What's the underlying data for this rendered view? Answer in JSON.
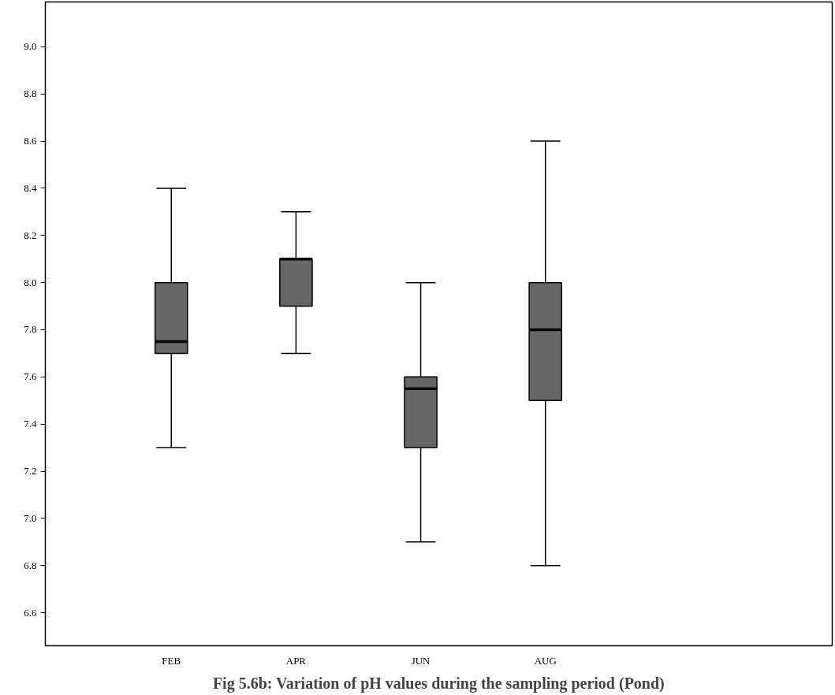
{
  "chart_data": {
    "type": "box",
    "title": "Fig 5.6b: Variation of pH values during the sampling period (Pond)",
    "categories": [
      "FEB",
      "APR",
      "JUN",
      "AUG"
    ],
    "boxes": [
      {
        "low": 7.3,
        "q1": 7.7,
        "median": 7.75,
        "q3": 8.0,
        "high": 8.4
      },
      {
        "low": 7.7,
        "q1": 7.9,
        "median": 8.1,
        "q3": 8.1,
        "high": 8.3
      },
      {
        "low": 6.9,
        "q1": 7.3,
        "median": 7.55,
        "q3": 7.6,
        "high": 8.0
      },
      {
        "low": 6.8,
        "q1": 7.5,
        "median": 7.8,
        "q3": 8.0,
        "high": 8.6
      }
    ],
    "color": "#666666",
    "ylim": [
      6.46,
      9.19
    ],
    "yticks": [
      {
        "value": 6.6,
        "label": "6.6"
      },
      {
        "value": 6.8,
        "label": "6.8"
      },
      {
        "value": 7.0,
        "label": "7.0"
      },
      {
        "value": 7.2,
        "label": "7.2"
      },
      {
        "value": 7.4,
        "label": "7.4"
      },
      {
        "value": 7.6,
        "label": "7.6"
      },
      {
        "value": 7.8,
        "label": "7.8"
      },
      {
        "value": 8.0,
        "label": "8.0"
      },
      {
        "value": 8.2,
        "label": "8.2"
      },
      {
        "value": 8.4,
        "label": "8.4"
      },
      {
        "value": 8.6,
        "label": "8.6"
      },
      {
        "value": 8.8,
        "label": "8.8"
      },
      {
        "value": 9.0,
        "label": "9.0"
      }
    ],
    "grid": false
  }
}
